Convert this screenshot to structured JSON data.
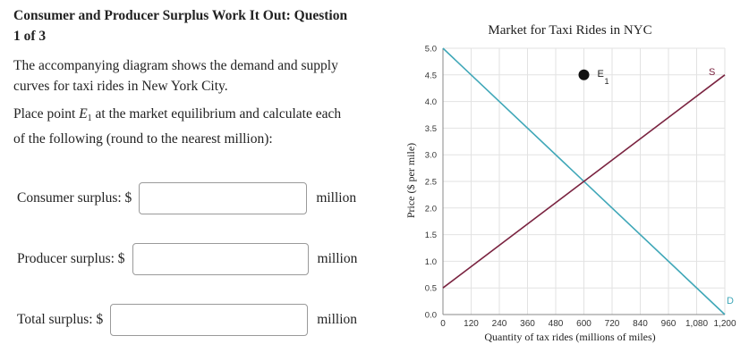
{
  "question": {
    "title_line1": "Consumer and Producer Surplus Work It Out: Question",
    "title_line2": "1 of 3",
    "intro_line1": "The accompanying diagram shows the demand and supply",
    "intro_line2": "curves for taxi rides in New York City.",
    "instruction_prefix": "Place point ",
    "instruction_point": "E",
    "instruction_point_sub": "1",
    "instruction_suffix": " at the market equilibrium and calculate each",
    "instruction_line2": "of the following (round to the nearest million):"
  },
  "answers": [
    {
      "label": "Consumer surplus: $",
      "value": "",
      "unit": "million"
    },
    {
      "label": "Producer surplus: $",
      "value": "",
      "unit": "million"
    },
    {
      "label": "Total surplus: $",
      "value": "",
      "unit": "million"
    }
  ],
  "chart_data": {
    "type": "line",
    "title": "Market for Taxi Rides in NYC",
    "xlabel": "Quantity of tax rides (millions of miles)",
    "ylabel": "Price ($ per mile)",
    "xlim": [
      0,
      1200
    ],
    "ylim": [
      0,
      5
    ],
    "x_ticks": [
      0,
      120,
      240,
      360,
      480,
      600,
      720,
      840,
      960,
      1080,
      1200
    ],
    "x_tick_labels": [
      "0",
      "120",
      "240",
      "360",
      "480",
      "600",
      "720",
      "840",
      "960",
      "1,080",
      "1,200"
    ],
    "y_ticks": [
      0,
      0.5,
      1,
      1.5,
      2,
      2.5,
      3,
      3.5,
      4,
      4.5,
      5
    ],
    "y_tick_labels": [
      "0.0",
      "0.5",
      "1.0",
      "1.5",
      "2.0",
      "2.5",
      "3.0",
      "3.5",
      "4.0",
      "4.5",
      "5.0"
    ],
    "grid": true,
    "series": [
      {
        "name": "D",
        "color": "#3fa7b8",
        "x": [
          0,
          1200
        ],
        "y": [
          5,
          0
        ]
      },
      {
        "name": "S",
        "color": "#7a2340",
        "x": [
          0,
          1200
        ],
        "y": [
          0.5,
          4.5
        ]
      }
    ],
    "draggable_point": {
      "label": "E",
      "label_sub": "1",
      "x": 600,
      "y": 4.5,
      "color": "#111111"
    }
  }
}
